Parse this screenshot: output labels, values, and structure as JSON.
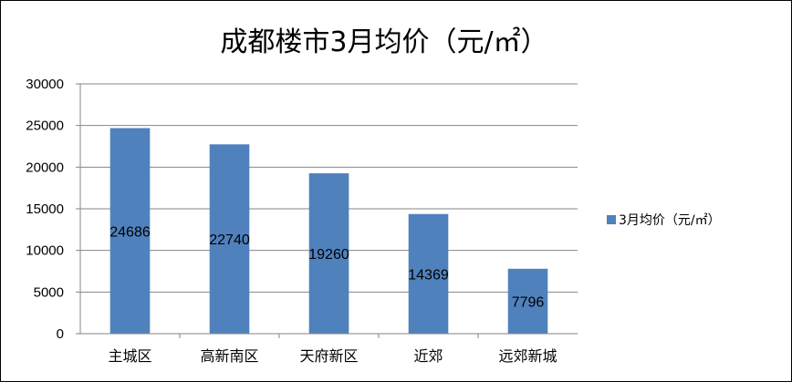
{
  "chart_data": {
    "type": "bar",
    "title": "成都楼市3月均价（元/㎡）",
    "categories": [
      "主城区",
      "高新南区",
      "天府新区",
      "近郊",
      "远郊新城"
    ],
    "series": [
      {
        "name": "3月均价（元/㎡）",
        "values": [
          24686,
          22740,
          19260,
          14369,
          7796
        ],
        "color": "#4f81bd"
      }
    ],
    "data_labels": [
      "24686",
      "22740",
      "19260",
      "14369",
      "7796"
    ],
    "y_ticks": [
      "0",
      "5000",
      "10000",
      "15000",
      "20000",
      "25000",
      "30000"
    ],
    "ylim": [
      0,
      30000
    ],
    "grid": true,
    "legend_position": "right"
  }
}
